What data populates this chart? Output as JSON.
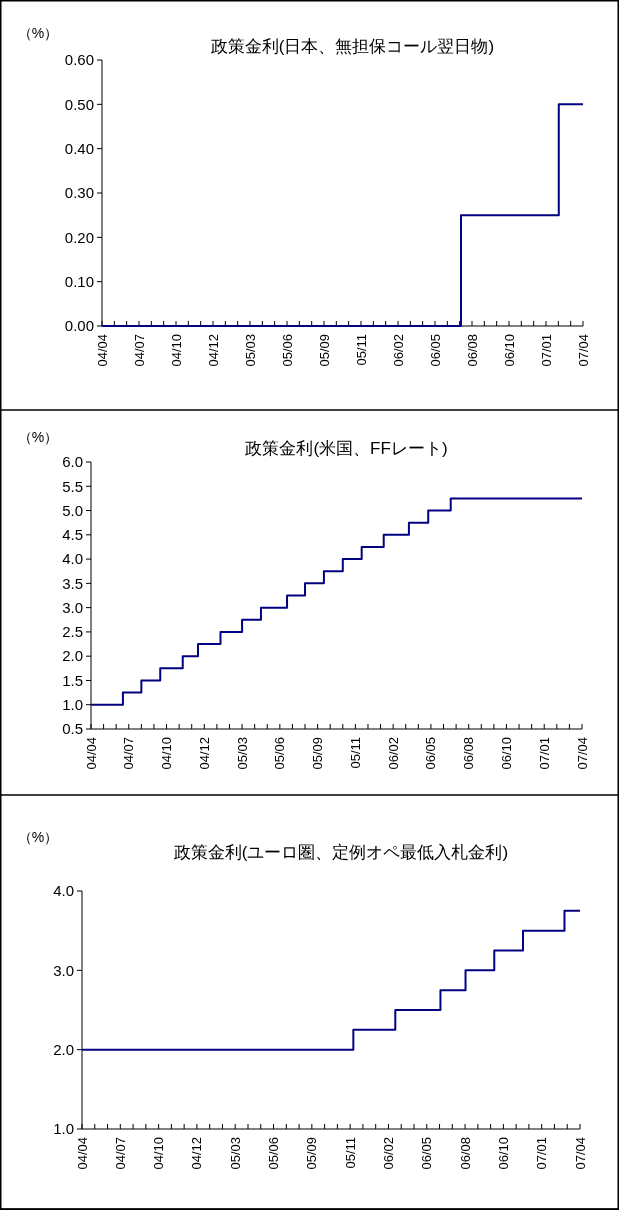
{
  "chart_data": [
    {
      "type": "step",
      "title": "政策金利(日本、無担保コール翌日物)",
      "ylabel": "（%）",
      "series": [
        {
          "color": "#000080",
          "x": [
            "2004-04-20",
            "2006-07-14",
            "2007-02-21",
            "2007-04-17"
          ],
          "values": [
            0,
            0.25,
            0.5,
            0.5
          ]
        }
      ],
      "xlim": [
        "2004-04-20",
        "2007-04-17"
      ],
      "xticks": [
        {
          "value": "2004-04-20",
          "label": "04/04"
        },
        {
          "value": "2004-05-18",
          "label": null
        },
        {
          "value": "2004-06-15",
          "label": null
        },
        {
          "value": "2004-07-13",
          "label": "04/07"
        },
        {
          "value": "2004-08-10",
          "label": null
        },
        {
          "value": "2004-09-07",
          "label": null
        },
        {
          "value": "2004-10-05",
          "label": "04/10"
        },
        {
          "value": "2004-11-02",
          "label": null
        },
        {
          "value": "2004-11-30",
          "label": null
        },
        {
          "value": "2004-12-28",
          "label": "04/12"
        },
        {
          "value": "2005-01-25",
          "label": null
        },
        {
          "value": "2005-02-22",
          "label": null
        },
        {
          "value": "2005-03-22",
          "label": "05/03"
        },
        {
          "value": "2005-04-19",
          "label": null
        },
        {
          "value": "2005-05-17",
          "label": null
        },
        {
          "value": "2005-06-14",
          "label": "05/06"
        },
        {
          "value": "2005-07-12",
          "label": null
        },
        {
          "value": "2005-08-09",
          "label": null
        },
        {
          "value": "2005-09-06",
          "label": "05/09"
        },
        {
          "value": "2005-10-04",
          "label": null
        },
        {
          "value": "2005-11-01",
          "label": null
        },
        {
          "value": "2005-11-29",
          "label": "05/11"
        },
        {
          "value": "2005-12-27",
          "label": null
        },
        {
          "value": "2006-01-24",
          "label": null
        },
        {
          "value": "2006-02-21",
          "label": "06/02"
        },
        {
          "value": "2006-03-21",
          "label": null
        },
        {
          "value": "2006-04-18",
          "label": null
        },
        {
          "value": "2006-05-16",
          "label": "06/05"
        },
        {
          "value": "2006-06-13",
          "label": null
        },
        {
          "value": "2006-07-11",
          "label": null
        },
        {
          "value": "2006-08-08",
          "label": "06/08"
        },
        {
          "value": "2006-09-05",
          "label": null
        },
        {
          "value": "2006-10-03",
          "label": null
        },
        {
          "value": "2006-10-31",
          "label": "06/10"
        },
        {
          "value": "2006-11-28",
          "label": null
        },
        {
          "value": "2006-12-26",
          "label": null
        },
        {
          "value": "2007-01-23",
          "label": "07/01"
        },
        {
          "value": "2007-02-20",
          "label": null
        },
        {
          "value": "2007-03-20",
          "label": null
        },
        {
          "value": "2007-04-17",
          "label": "07/04"
        }
      ],
      "ylim": [
        0,
        0.6
      ],
      "yticks": [
        {
          "value": 0,
          "label": "0.00"
        },
        {
          "value": 0.1,
          "label": "0.10"
        },
        {
          "value": 0.2,
          "label": "0.20"
        },
        {
          "value": 0.3,
          "label": "0.30"
        },
        {
          "value": 0.4,
          "label": "0.40"
        },
        {
          "value": 0.5,
          "label": "0.50"
        },
        {
          "value": 0.6,
          "label": "0.60"
        }
      ]
    },
    {
      "type": "step",
      "title": "政策金利(米国、FFレート)",
      "ylabel": "（%）",
      "series": [
        {
          "color": "#000080",
          "x": [
            "2004-04-20",
            "2004-06-30",
            "2004-08-10",
            "2004-09-21",
            "2004-11-10",
            "2004-12-14",
            "2005-02-02",
            "2005-03-22",
            "2005-05-03",
            "2005-06-30",
            "2005-08-09",
            "2005-09-20",
            "2005-11-01",
            "2005-12-13",
            "2006-01-31",
            "2006-03-28",
            "2006-05-10",
            "2006-06-29",
            "2007-04-17"
          ],
          "values": [
            1.0,
            1.25,
            1.5,
            1.75,
            2.0,
            2.25,
            2.5,
            2.75,
            3.0,
            3.25,
            3.5,
            3.75,
            4.0,
            4.25,
            4.5,
            4.75,
            5.0,
            5.25,
            5.25
          ]
        }
      ],
      "xlim": [
        "2004-04-20",
        "2007-04-17"
      ],
      "xticks": [
        {
          "value": "2004-04-20",
          "label": "04/04"
        },
        {
          "value": "2004-05-18",
          "label": null
        },
        {
          "value": "2004-06-15",
          "label": null
        },
        {
          "value": "2004-07-13",
          "label": "04/07"
        },
        {
          "value": "2004-08-10",
          "label": null
        },
        {
          "value": "2004-09-07",
          "label": null
        },
        {
          "value": "2004-10-05",
          "label": "04/10"
        },
        {
          "value": "2004-11-02",
          "label": null
        },
        {
          "value": "2004-11-30",
          "label": null
        },
        {
          "value": "2004-12-28",
          "label": "04/12"
        },
        {
          "value": "2005-01-25",
          "label": null
        },
        {
          "value": "2005-02-22",
          "label": null
        },
        {
          "value": "2005-03-22",
          "label": "05/03"
        },
        {
          "value": "2005-04-19",
          "label": null
        },
        {
          "value": "2005-05-17",
          "label": null
        },
        {
          "value": "2005-06-14",
          "label": "05/06"
        },
        {
          "value": "2005-07-12",
          "label": null
        },
        {
          "value": "2005-08-09",
          "label": null
        },
        {
          "value": "2005-09-06",
          "label": "05/09"
        },
        {
          "value": "2005-10-04",
          "label": null
        },
        {
          "value": "2005-11-01",
          "label": null
        },
        {
          "value": "2005-11-29",
          "label": "05/11"
        },
        {
          "value": "2005-12-27",
          "label": null
        },
        {
          "value": "2006-01-24",
          "label": null
        },
        {
          "value": "2006-02-21",
          "label": "06/02"
        },
        {
          "value": "2006-03-21",
          "label": null
        },
        {
          "value": "2006-04-18",
          "label": null
        },
        {
          "value": "2006-05-16",
          "label": "06/05"
        },
        {
          "value": "2006-06-13",
          "label": null
        },
        {
          "value": "2006-07-11",
          "label": null
        },
        {
          "value": "2006-08-08",
          "label": "06/08"
        },
        {
          "value": "2006-09-05",
          "label": null
        },
        {
          "value": "2006-10-03",
          "label": null
        },
        {
          "value": "2006-10-31",
          "label": "06/10"
        },
        {
          "value": "2006-11-28",
          "label": null
        },
        {
          "value": "2006-12-26",
          "label": null
        },
        {
          "value": "2007-01-23",
          "label": "07/01"
        },
        {
          "value": "2007-02-20",
          "label": null
        },
        {
          "value": "2007-03-20",
          "label": null
        },
        {
          "value": "2007-04-17",
          "label": "07/04"
        }
      ],
      "ylim": [
        0.5,
        6.0
      ],
      "yticks": [
        {
          "value": 0.5,
          "label": "0.5"
        },
        {
          "value": 1.0,
          "label": "1.0"
        },
        {
          "value": 1.5,
          "label": "1.5"
        },
        {
          "value": 2.0,
          "label": "2.0"
        },
        {
          "value": 2.5,
          "label": "2.5"
        },
        {
          "value": 3.0,
          "label": "3.0"
        },
        {
          "value": 3.5,
          "label": "3.5"
        },
        {
          "value": 4.0,
          "label": "4.0"
        },
        {
          "value": 4.5,
          "label": "4.5"
        },
        {
          "value": 5.0,
          "label": "5.0"
        },
        {
          "value": 5.5,
          "label": "5.5"
        },
        {
          "value": 6.0,
          "label": "6.0"
        }
      ]
    },
    {
      "type": "step",
      "title": "政策金利(ユーロ圏、定例オペ最低入札金利)",
      "ylabel": "（%）",
      "series": [
        {
          "color": "#000080",
          "x": [
            "2004-04-20",
            "2005-12-06",
            "2006-03-08",
            "2006-06-15",
            "2006-08-09",
            "2006-10-11",
            "2006-12-13",
            "2007-03-14",
            "2007-04-17"
          ],
          "values": [
            2.0,
            2.25,
            2.5,
            2.75,
            3.0,
            3.25,
            3.5,
            3.75,
            3.75
          ]
        }
      ],
      "xlim": [
        "2004-04-20",
        "2007-04-17"
      ],
      "xticks": [
        {
          "value": "2004-04-20",
          "label": "04/04"
        },
        {
          "value": "2004-05-18",
          "label": null
        },
        {
          "value": "2004-06-15",
          "label": null
        },
        {
          "value": "2004-07-13",
          "label": "04/07"
        },
        {
          "value": "2004-08-10",
          "label": null
        },
        {
          "value": "2004-09-07",
          "label": null
        },
        {
          "value": "2004-10-05",
          "label": "04/10"
        },
        {
          "value": "2004-11-02",
          "label": null
        },
        {
          "value": "2004-11-30",
          "label": null
        },
        {
          "value": "2004-12-28",
          "label": "04/12"
        },
        {
          "value": "2005-01-25",
          "label": null
        },
        {
          "value": "2005-02-22",
          "label": null
        },
        {
          "value": "2005-03-22",
          "label": "05/03"
        },
        {
          "value": "2005-04-19",
          "label": null
        },
        {
          "value": "2005-05-17",
          "label": null
        },
        {
          "value": "2005-06-14",
          "label": "05/06"
        },
        {
          "value": "2005-07-12",
          "label": null
        },
        {
          "value": "2005-08-09",
          "label": null
        },
        {
          "value": "2005-09-06",
          "label": "05/09"
        },
        {
          "value": "2005-10-04",
          "label": null
        },
        {
          "value": "2005-11-01",
          "label": null
        },
        {
          "value": "2005-11-29",
          "label": "05/11"
        },
        {
          "value": "2005-12-27",
          "label": null
        },
        {
          "value": "2006-01-24",
          "label": null
        },
        {
          "value": "2006-02-21",
          "label": "06/02"
        },
        {
          "value": "2006-03-21",
          "label": null
        },
        {
          "value": "2006-04-18",
          "label": null
        },
        {
          "value": "2006-05-16",
          "label": "06/05"
        },
        {
          "value": "2006-06-13",
          "label": null
        },
        {
          "value": "2006-07-11",
          "label": null
        },
        {
          "value": "2006-08-08",
          "label": "06/08"
        },
        {
          "value": "2006-09-05",
          "label": null
        },
        {
          "value": "2006-10-03",
          "label": null
        },
        {
          "value": "2006-10-31",
          "label": "06/10"
        },
        {
          "value": "2006-11-28",
          "label": null
        },
        {
          "value": "2006-12-26",
          "label": null
        },
        {
          "value": "2007-01-23",
          "label": "07/01"
        },
        {
          "value": "2007-02-20",
          "label": null
        },
        {
          "value": "2007-03-20",
          "label": null
        },
        {
          "value": "2007-04-17",
          "label": "07/04"
        }
      ],
      "ylim": [
        1.0,
        4.0
      ],
      "yticks": [
        {
          "value": 1.0,
          "label": "1.0"
        },
        {
          "value": 2.0,
          "label": "2.0"
        },
        {
          "value": 3.0,
          "label": "3.0"
        },
        {
          "value": 4.0,
          "label": "4.0"
        }
      ]
    }
  ]
}
